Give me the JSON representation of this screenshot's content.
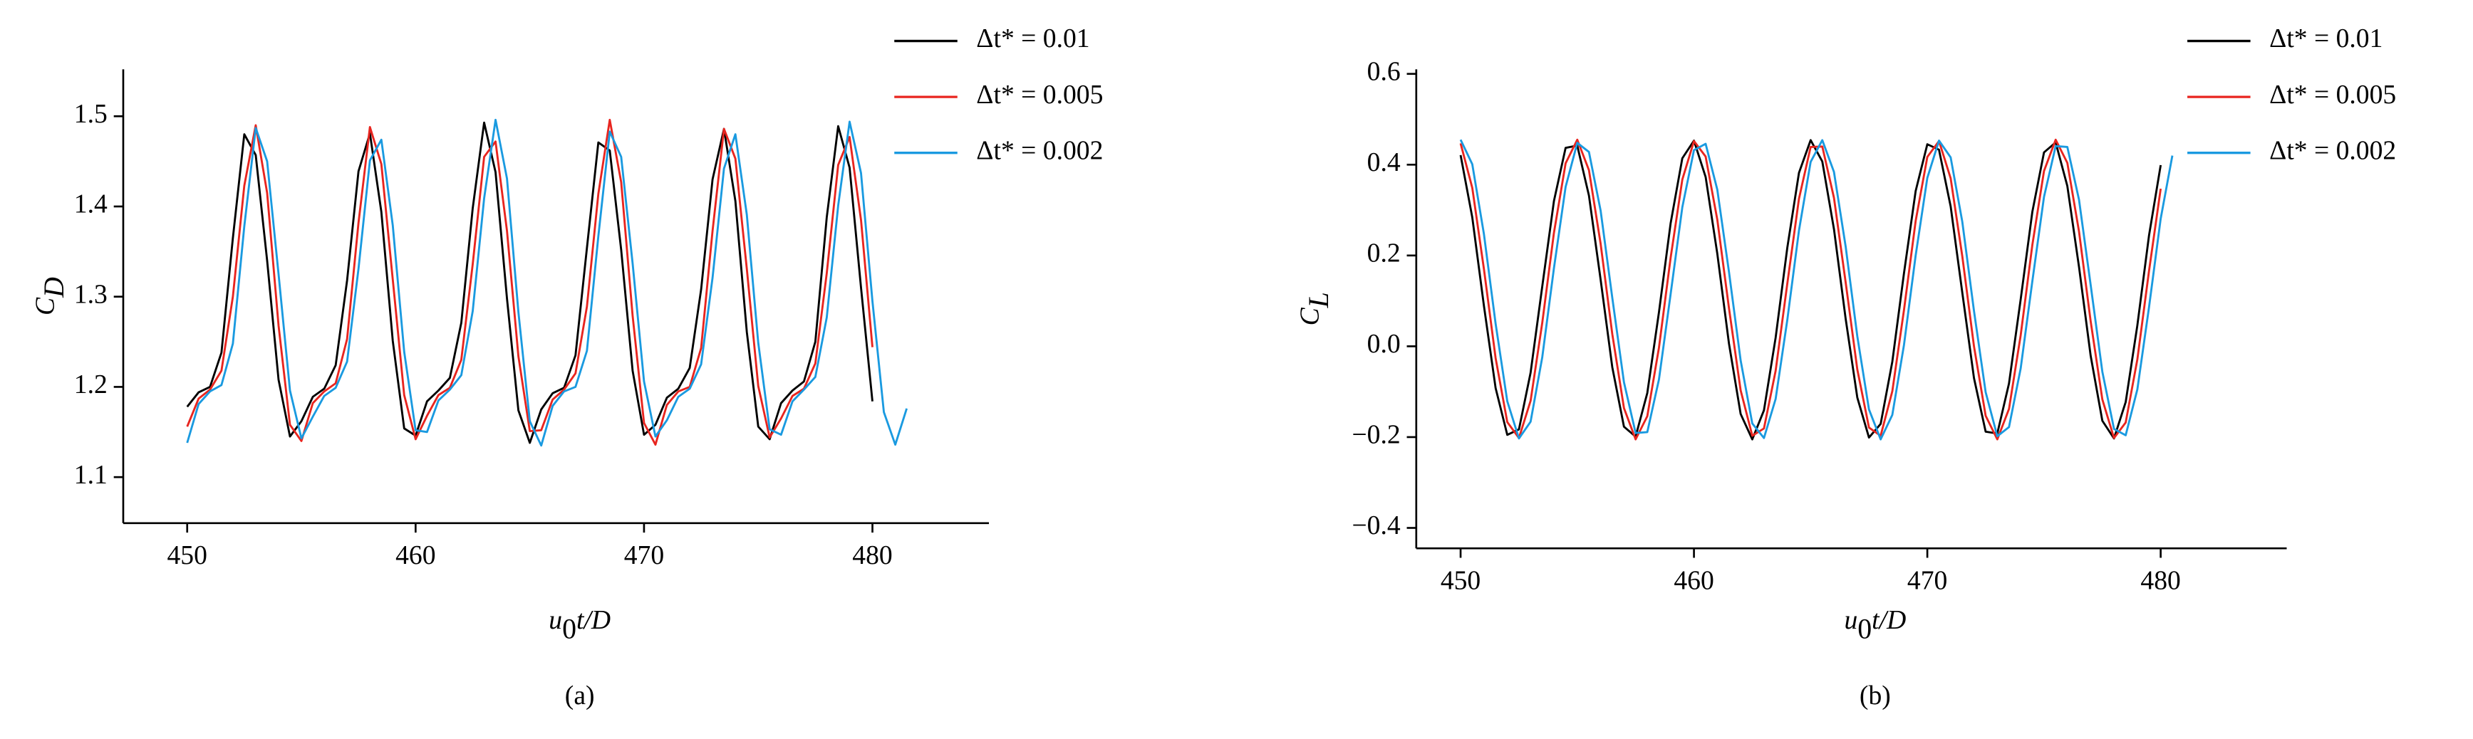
{
  "chart_data": [
    {
      "type": "line",
      "panel_label": "(a)",
      "xlabel": {
        "text": "u",
        "subscript": "0",
        "suffix": "t/D"
      },
      "ylabel": {
        "text": "C",
        "subscript": "D"
      },
      "legend": "upper right",
      "xlim": [
        447.2,
        485.1
      ],
      "xticks": [
        450,
        460,
        470,
        480
      ],
      "ylim": [
        1.049,
        1.552
      ],
      "yticks": [
        1.1,
        1.2,
        1.3,
        1.4,
        1.5
      ],
      "x": [
        450,
        450.5,
        451,
        451.5,
        452,
        452.5,
        453,
        453.5,
        454,
        454.5,
        455,
        455.5,
        456,
        456.5,
        457,
        457.5,
        458,
        458.5,
        459,
        459.5,
        460,
        460.5,
        461,
        461.5,
        462,
        462.5,
        463,
        463.5,
        464,
        464.5,
        465,
        465.5,
        466,
        466.5,
        467,
        467.5,
        468,
        468.5,
        469,
        469.5,
        470,
        470.5,
        471,
        471.5,
        472,
        472.5,
        473,
        473.5,
        474,
        474.5,
        475,
        475.5,
        476,
        476.5,
        477,
        477.5,
        478,
        478.5,
        479,
        479.5,
        480,
        480.5,
        481,
        481.5
      ],
      "series": [
        {
          "name": "Δt* = 0.01",
          "color": "#000000",
          "values": [
            1.178,
            1.194,
            1.2,
            1.238,
            1.365,
            1.48,
            1.457,
            1.34,
            1.208,
            1.145,
            1.162,
            1.189,
            1.198,
            1.224,
            1.318,
            1.439,
            1.481,
            1.394,
            1.251,
            1.154,
            1.146,
            1.184,
            1.196,
            1.21,
            1.271,
            1.398,
            1.493,
            1.438,
            1.298,
            1.174,
            1.138,
            1.175,
            1.193,
            1.199,
            1.235,
            1.354,
            1.471,
            1.462,
            1.352,
            1.218,
            1.147,
            1.158,
            1.188,
            1.198,
            1.221,
            1.308,
            1.43,
            1.486,
            1.406,
            1.261,
            1.156,
            1.142,
            1.182,
            1.196,
            1.206,
            1.25,
            1.388,
            1.489,
            1.443,
            1.31,
            1.184,
            null,
            null,
            null
          ]
        },
        {
          "name": "Δt* = 0.005",
          "color": "#e8251f",
          "values": [
            1.156,
            1.187,
            1.197,
            1.218,
            1.3,
            1.423,
            1.49,
            1.415,
            1.268,
            1.158,
            1.14,
            1.182,
            1.195,
            1.204,
            1.253,
            1.382,
            1.488,
            1.447,
            1.319,
            1.191,
            1.142,
            1.168,
            1.191,
            1.199,
            1.23,
            1.336,
            1.455,
            1.472,
            1.373,
            1.234,
            1.151,
            1.152,
            1.186,
            1.197,
            1.215,
            1.289,
            1.414,
            1.496,
            1.427,
            1.279,
            1.16,
            1.136,
            1.18,
            1.195,
            1.2,
            1.243,
            1.373,
            1.486,
            1.453,
            1.331,
            1.201,
            1.144,
            1.165,
            1.19,
            1.198,
            1.226,
            1.326,
            1.446,
            1.477,
            1.385,
            1.244,
            null,
            null,
            null
          ]
        },
        {
          "name": "Δt* = 0.002",
          "color": "#1a9ae0",
          "values": [
            1.138,
            1.181,
            1.195,
            1.202,
            1.248,
            1.378,
            1.487,
            1.45,
            1.325,
            1.196,
            1.143,
            1.167,
            1.19,
            1.199,
            1.228,
            1.331,
            1.451,
            1.474,
            1.379,
            1.239,
            1.152,
            1.15,
            1.185,
            1.197,
            1.213,
            1.284,
            1.409,
            1.496,
            1.431,
            1.283,
            1.162,
            1.135,
            1.179,
            1.195,
            1.2,
            1.24,
            1.367,
            1.483,
            1.455,
            1.337,
            1.206,
            1.145,
            1.163,
            1.189,
            1.198,
            1.225,
            1.321,
            1.442,
            1.48,
            1.391,
            1.249,
            1.153,
            1.147,
            1.184,
            1.197,
            1.211,
            1.277,
            1.401,
            1.494,
            1.437,
            1.295,
            1.172,
            1.136,
            1.176
          ]
        }
      ]
    },
    {
      "type": "line",
      "panel_label": "(b)",
      "xlabel": {
        "text": "u",
        "subscript": "0",
        "suffix": "t/D"
      },
      "ylabel": {
        "text": "C",
        "subscript": "L"
      },
      "legend": "upper right",
      "xlim": [
        448.1,
        485.4
      ],
      "xticks": [
        450,
        460,
        470,
        480
      ],
      "ylim": [
        -0.445,
        0.61
      ],
      "yticks": [
        {
          "value": -0.4,
          "label": "−0.4"
        },
        {
          "value": -0.2,
          "label": "−0.2"
        },
        {
          "value": 0,
          "label": "0.0"
        },
        0.2,
        0.4,
        0.6
      ],
      "x": [
        450,
        450.5,
        451,
        451.5,
        452,
        452.5,
        453,
        453.5,
        454,
        454.5,
        455,
        455.5,
        456,
        456.5,
        457,
        457.5,
        458,
        458.5,
        459,
        459.5,
        460,
        460.5,
        461,
        461.5,
        462,
        462.5,
        463,
        463.5,
        464,
        464.5,
        465,
        465.5,
        466,
        466.5,
        467,
        467.5,
        468,
        468.5,
        469,
        469.5,
        470,
        470.5,
        471,
        471.5,
        472,
        472.5,
        473,
        473.5,
        474,
        474.5,
        475,
        475.5,
        476,
        476.5,
        477,
        477.5,
        478,
        478.5,
        479,
        479.5,
        480,
        480.5
      ],
      "series": [
        {
          "name": "Δt* = 0.01",
          "color": "#000000",
          "values": [
            0.421,
            0.284,
            0.089,
            -0.092,
            -0.195,
            -0.183,
            -0.058,
            0.132,
            0.32,
            0.437,
            0.442,
            0.332,
            0.147,
            -0.046,
            -0.177,
            -0.199,
            -0.103,
            0.075,
            0.271,
            0.414,
            0.453,
            0.373,
            0.204,
            0.006,
            -0.149,
            -0.205,
            -0.141,
            0.019,
            0.217,
            0.382,
            0.454,
            0.407,
            0.258,
            0.061,
            -0.113,
            -0.201,
            -0.171,
            -0.034,
            0.161,
            0.342,
            0.445,
            0.433,
            0.308,
            0.118,
            -0.07,
            -0.188,
            -0.192,
            -0.082,
            0.103,
            0.296,
            0.427,
            0.449,
            0.353,
            0.175,
            -0.021,
            -0.164,
            -0.203,
            -0.123,
            0.046,
            0.244,
            0.399,
            null
          ]
        },
        {
          "name": "Δt* = 0.005",
          "color": "#e8251f",
          "values": [
            0.447,
            0.349,
            0.17,
            -0.026,
            -0.167,
            -0.202,
            -0.12,
            0.052,
            0.25,
            0.403,
            0.455,
            0.388,
            0.226,
            0.027,
            -0.136,
            -0.205,
            -0.154,
            -0.003,
            0.195,
            0.367,
            0.452,
            0.418,
            0.279,
            0.084,
            -0.097,
            -0.197,
            -0.181,
            -0.054,
            0.138,
            0.325,
            0.439,
            0.44,
            0.327,
            0.141,
            -0.051,
            -0.179,
            -0.197,
            -0.099,
            0.08,
            0.276,
            0.417,
            0.452,
            0.37,
            0.198,
            0.0,
            -0.153,
            -0.205,
            -0.138,
            0.024,
            0.223,
            0.386,
            0.455,
            0.404,
            0.253,
            0.055,
            -0.117,
            -0.202,
            -0.168,
            -0.029,
            0.166,
            0.347,
            null
          ]
        },
        {
          "name": "Δt* = 0.002",
          "color": "#1a9ae0",
          "values": [
            0.455,
            0.401,
            0.247,
            0.05,
            -0.121,
            -0.203,
            -0.166,
            -0.024,
            0.172,
            0.351,
            0.448,
            0.428,
            0.299,
            0.107,
            -0.079,
            -0.191,
            -0.189,
            -0.073,
            0.115,
            0.306,
            0.432,
            0.446,
            0.345,
            0.164,
            -0.031,
            -0.17,
            -0.202,
            -0.116,
            0.058,
            0.255,
            0.406,
            0.454,
            0.384,
            0.22,
            0.022,
            -0.139,
            -0.205,
            -0.151,
            0.003,
            0.2,
            0.371,
            0.453,
            0.416,
            0.274,
            0.078,
            -0.101,
            -0.198,
            -0.178,
            -0.049,
            0.143,
            0.329,
            0.441,
            0.439,
            0.323,
            0.135,
            -0.056,
            -0.182,
            -0.196,
            -0.095,
            0.086,
            0.281,
            0.42
          ]
        }
      ]
    }
  ]
}
